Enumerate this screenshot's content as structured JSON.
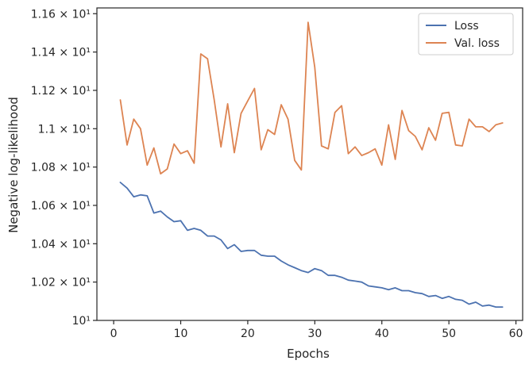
{
  "chart_data": {
    "type": "line",
    "xlabel": "Epochs",
    "ylabel": "Negative log-likelihood",
    "xlim": [
      -2.5,
      61
    ],
    "ylim": [
      10.0,
      11.63
    ],
    "x_ticks": [
      0,
      10,
      20,
      30,
      40,
      50,
      60
    ],
    "y_ticks": [
      {
        "value": 10.0,
        "label": "10¹"
      },
      {
        "value": 10.2,
        "label": "1.02 × 10¹"
      },
      {
        "value": 10.4,
        "label": "1.04 × 10¹"
      },
      {
        "value": 10.6,
        "label": "1.06 × 10¹"
      },
      {
        "value": 10.8,
        "label": "1.08 × 10¹"
      },
      {
        "value": 11.0,
        "label": "1.1 × 10¹"
      },
      {
        "value": 11.2,
        "label": "1.12 × 10¹"
      },
      {
        "value": 11.4,
        "label": "1.14 × 10¹"
      },
      {
        "value": 11.6,
        "label": "1.16 × 10¹"
      }
    ],
    "grid": false,
    "legend_position": "top-right",
    "x": [
      1,
      2,
      3,
      4,
      5,
      6,
      7,
      8,
      9,
      10,
      11,
      12,
      13,
      14,
      15,
      16,
      17,
      18,
      19,
      20,
      21,
      22,
      23,
      24,
      25,
      26,
      27,
      28,
      29,
      30,
      31,
      32,
      33,
      34,
      35,
      36,
      37,
      38,
      39,
      40,
      41,
      42,
      43,
      44,
      45,
      46,
      47,
      48,
      49,
      50,
      51,
      52,
      53,
      54,
      55,
      56,
      57,
      58
    ],
    "series": [
      {
        "name": "Loss",
        "color": "#4c72b0",
        "values": [
          10.72,
          10.69,
          10.645,
          10.655,
          10.65,
          10.56,
          10.57,
          10.54,
          10.515,
          10.52,
          10.47,
          10.48,
          10.47,
          10.44,
          10.44,
          10.42,
          10.375,
          10.395,
          10.36,
          10.365,
          10.365,
          10.34,
          10.335,
          10.335,
          10.31,
          10.29,
          10.275,
          10.26,
          10.25,
          10.27,
          10.26,
          10.235,
          10.235,
          10.225,
          10.21,
          10.205,
          10.2,
          10.18,
          10.175,
          10.17,
          10.16,
          10.17,
          10.155,
          10.155,
          10.145,
          10.14,
          10.125,
          10.13,
          10.115,
          10.125,
          10.11,
          10.105,
          10.085,
          10.095,
          10.075,
          10.08,
          10.07,
          10.07
        ]
      },
      {
        "name": "Val. loss",
        "color": "#dd8452",
        "values": [
          11.15,
          10.915,
          11.05,
          11.0,
          10.81,
          10.9,
          10.765,
          10.79,
          10.92,
          10.87,
          10.885,
          10.82,
          11.39,
          11.365,
          11.15,
          10.905,
          11.13,
          10.875,
          11.08,
          11.145,
          11.21,
          10.89,
          10.995,
          10.97,
          11.125,
          11.05,
          10.835,
          10.785,
          11.555,
          11.32,
          10.91,
          10.895,
          11.085,
          11.12,
          10.87,
          10.905,
          10.86,
          10.875,
          10.895,
          10.81,
          11.02,
          10.84,
          11.095,
          10.99,
          10.96,
          10.89,
          11.005,
          10.94,
          11.08,
          11.085,
          10.915,
          10.91,
          11.05,
          11.01,
          11.01,
          10.985,
          11.02,
          11.03
        ]
      }
    ]
  }
}
